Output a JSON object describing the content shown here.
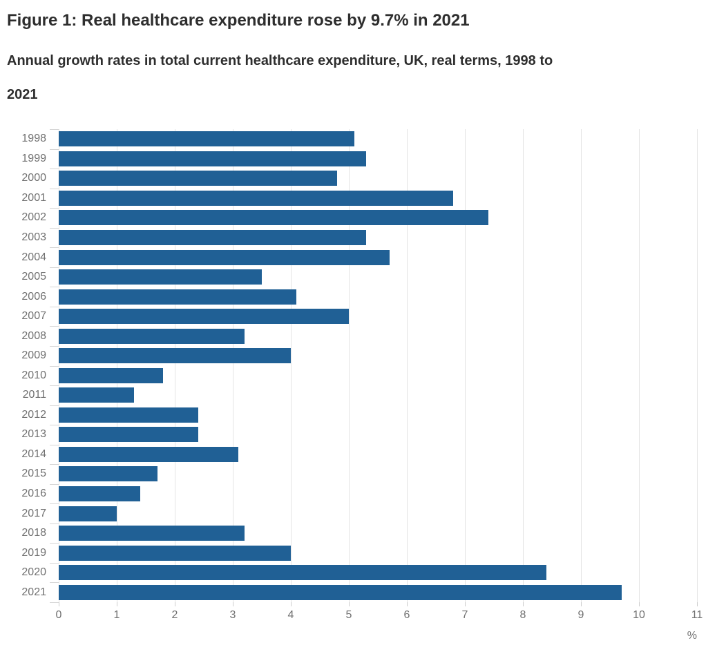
{
  "header": {
    "title": "Figure 1: Real healthcare expenditure rose by 9.7% in 2021",
    "subtitle": "Annual growth rates in total current healthcare expenditure, UK, real terms, 1998 to 2021"
  },
  "chart_data": {
    "type": "bar",
    "orientation": "horizontal",
    "title": "Figure 1: Real healthcare expenditure rose by 9.7% in 2021",
    "subtitle": "Annual growth rates in total current healthcare expenditure, UK, real terms, 1998 to 2021",
    "categories": [
      "1998",
      "1999",
      "2000",
      "2001",
      "2002",
      "2003",
      "2004",
      "2005",
      "2006",
      "2007",
      "2008",
      "2009",
      "2010",
      "2011",
      "2012",
      "2013",
      "2014",
      "2015",
      "2016",
      "2017",
      "2018",
      "2019",
      "2020",
      "2021"
    ],
    "values": [
      5.1,
      5.3,
      4.8,
      6.8,
      7.4,
      5.3,
      5.7,
      3.5,
      4.1,
      5.0,
      3.2,
      4.0,
      1.8,
      1.3,
      2.4,
      2.4,
      3.1,
      1.7,
      1.4,
      1.0,
      3.2,
      4.0,
      8.4,
      9.7
    ],
    "xlabel": "%",
    "ylabel": "",
    "xlim": [
      0,
      11
    ],
    "x_ticks": [
      0,
      1,
      2,
      3,
      4,
      5,
      6,
      7,
      8,
      9,
      10,
      11
    ],
    "grid": "vertical",
    "legend": "none",
    "bar_color": "#206095",
    "axis_label_color": "#707070",
    "gridline_color": "#e4e4e4"
  }
}
